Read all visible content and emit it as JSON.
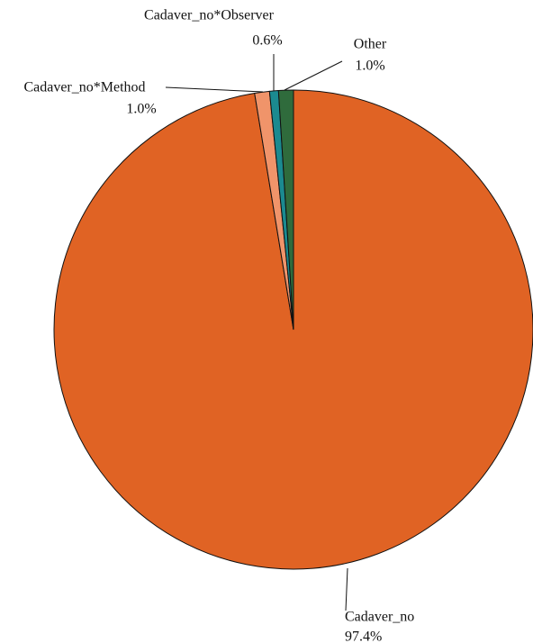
{
  "chart_data": {
    "type": "pie",
    "categories": [
      "Cadaver_no",
      "Cadaver_no*Method",
      "Cadaver_no*Observer",
      "Other"
    ],
    "values": [
      97.4,
      1.0,
      0.6,
      1.0
    ],
    "value_labels": [
      "97.4%",
      "1.0%",
      "0.6%",
      "1.0%"
    ],
    "colors": [
      "#e06324",
      "#f0946a",
      "#1b8a90",
      "#2f6b3c"
    ],
    "start_angle": 0,
    "direction": "clockwise"
  }
}
